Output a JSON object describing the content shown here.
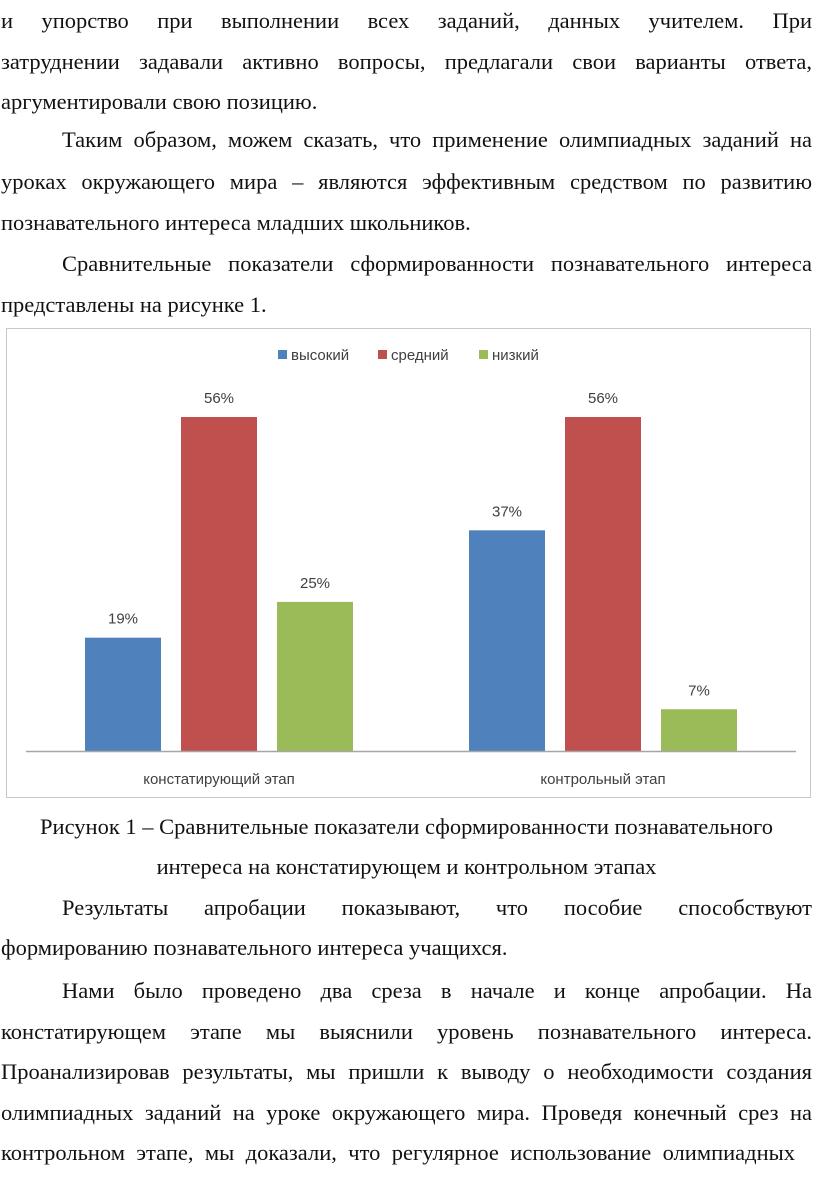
{
  "paragraphs": [
    {
      "lines": [
        "и упорство при выполнении всех заданий, данных учителем. При",
        "затруднении задавали активно вопросы, предлагали свои варианты ответа,",
        "аргументировали свою позицию."
      ]
    },
    {
      "lines": [
        "Таким образом, можем сказать, что применение олимпиадных заданий на",
        "уроках окружающего мира – являются эффективным средством по развитию",
        "познавательного интереса младших школьников."
      ]
    },
    {
      "lines": [
        "Сравнительные показатели сформированности познавательного интереса",
        "представлены на рисунке 1."
      ]
    }
  ],
  "caption": [
    "Рисунок 1 – Сравнительные показатели сформированности познавательного",
    "интереса на констатирующем и контрольном этапах"
  ],
  "paragraphs_after": [
    {
      "lines": [
        "Результаты апробации показывают, что пособие способствуют",
        "формированию познавательного интереса учащихся."
      ]
    },
    {
      "lines": [
        "Нами было проведено два среза в начале и конце апробации. На",
        "констатирующем этапе мы выяснили уровень познавательного интереса.",
        "Проанализировав результаты, мы пришли к выводу о необходимости создания",
        "олимпиадных заданий на уроке окружающего мира. Проведя конечный срез на",
        "контрольном этапе, мы доказали, что регулярное использование олимпиадных"
      ]
    }
  ],
  "chart_data": {
    "type": "bar",
    "categories": [
      "констатирующий этап",
      "контрольный этап"
    ],
    "series": [
      {
        "name": "высокий",
        "color": "#4f81bd",
        "values": [
          19,
          37
        ],
        "labels": [
          "19%",
          "37%"
        ]
      },
      {
        "name": "средний",
        "color": "#c0504d",
        "values": [
          56,
          56
        ],
        "labels": [
          "56%",
          "56%"
        ]
      },
      {
        "name": "низкий",
        "color": "#9bbb59",
        "values": [
          25,
          7
        ],
        "labels": [
          "25%",
          "7%"
        ]
      }
    ],
    "ylim": [
      0,
      56
    ],
    "legend": "top-center",
    "grid": false
  }
}
